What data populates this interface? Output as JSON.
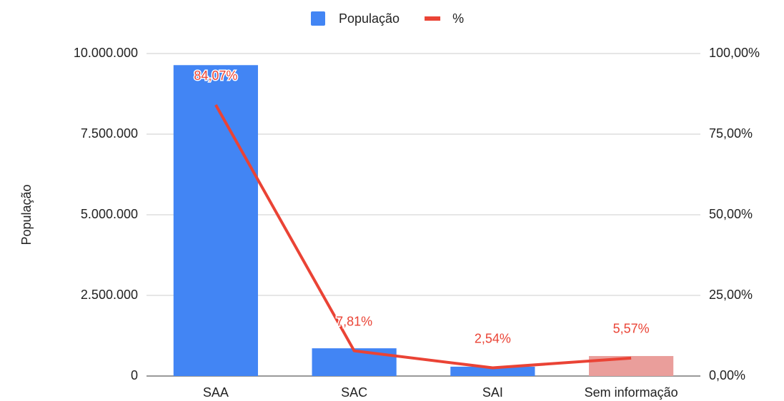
{
  "chart_data": {
    "type": "bar_line",
    "legend": "top",
    "ylabel": "População",
    "categories": [
      "SAA",
      "SAC",
      "SAI",
      "Sem informação"
    ],
    "series": [
      {
        "name": "População",
        "type": "bar",
        "color": "#4285f4",
        "colors": [
          "#4285f4",
          "#4285f4",
          "#4285f4",
          "#ea9e9b"
        ],
        "values": [
          9640000,
          860000,
          290000,
          620000
        ]
      },
      {
        "name": "%",
        "type": "line",
        "axis": "y2",
        "color": "#ea4335",
        "values": [
          84.07,
          7.81,
          2.54,
          5.57
        ],
        "value_labels": [
          "84,07%",
          "7,81%",
          "2,54%",
          "5,57%"
        ]
      }
    ],
    "ylim": [
      0,
      10000000
    ],
    "yticks": [
      0,
      {
        "value": 2500000,
        "label": "2.500.000"
      },
      {
        "value": 5000000,
        "label": "5.000.000"
      },
      {
        "value": 7500000,
        "label": "7.500.000"
      },
      {
        "value": 10000000,
        "label": "10.000.000"
      }
    ],
    "y2lim": [
      0,
      100
    ],
    "y2ticks": [
      {
        "value": 0,
        "label": "0,00%"
      },
      {
        "value": 25,
        "label": "25,00%"
      },
      {
        "value": 50,
        "label": "50,00%"
      },
      {
        "value": 75,
        "label": "75,00%"
      },
      {
        "value": 100,
        "label": "100,00%"
      }
    ],
    "grid": true
  }
}
